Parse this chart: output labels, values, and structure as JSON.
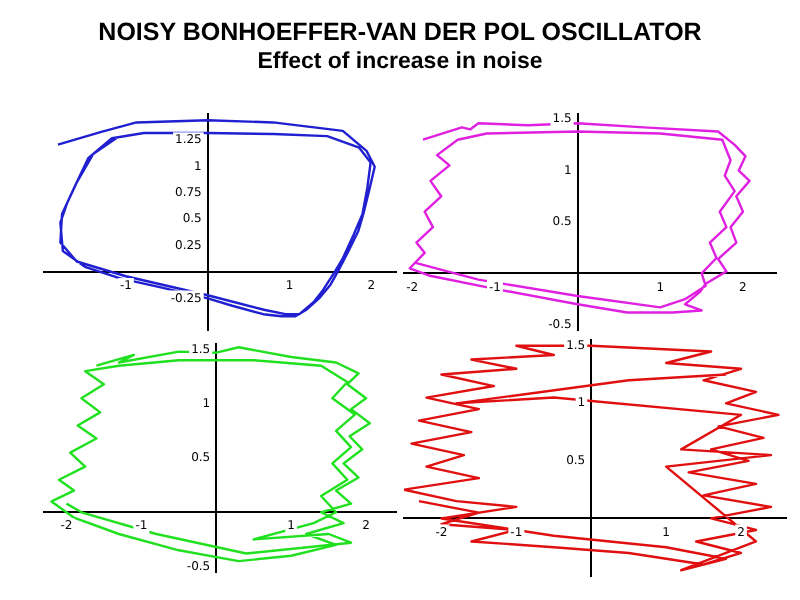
{
  "chart_data": [
    {
      "type": "line",
      "title": "NOISY BONHOEFFER-VAN DER POL OSCILLATOR",
      "subtitle": "Effect of increase in noise",
      "xlim": [
        -2,
        2.3
      ],
      "ylim": [
        -0.55,
        1.5
      ],
      "xticks": [
        -1,
        1,
        2
      ],
      "yticks": [
        -0.25,
        0.25,
        0.5,
        0.75,
        1,
        1.25
      ],
      "grid": false,
      "series": [
        {
          "color": "#2020d0",
          "x": [
            -1.83,
            -1.3,
            -0.87,
            0,
            0.8,
            1.65,
            1.94,
            2.04,
            1.98,
            1.9,
            1.84,
            1.72,
            1.6,
            1.5,
            1.36,
            1.2,
            1.07,
            0.9,
            0.68,
            0.3,
            0,
            -0.6,
            -1.07,
            -1.5,
            -1.77,
            -1.8,
            -1.72,
            -1.65,
            -1.46,
            -1.17,
            -0.78,
            0,
            0.8,
            1.46,
            1.85,
            1.99,
            1.95,
            1.89,
            1.78,
            1.65,
            1.55,
            1.41,
            1.3,
            1.12,
            0.95,
            0.7,
            0,
            -1,
            -1.6,
            -1.8,
            -1.78,
            -1.6,
            -1.4,
            -1.1
          ],
          "values": [
            1.21,
            1.33,
            1.42,
            1.44,
            1.42,
            1.34,
            1.15,
            1,
            0.8,
            0.55,
            0.39,
            0.2,
            0.02,
            -0.12,
            -0.25,
            -0.36,
            -0.42,
            -0.42,
            -0.4,
            -0.32,
            -0.25,
            -0.14,
            -0.06,
            0.05,
            0.2,
            0.47,
            0.65,
            0.77,
            1.08,
            1.27,
            1.32,
            1.32,
            1.31,
            1.29,
            1.18,
            1.04,
            0.8,
            0.55,
            0.35,
            0.13,
            0,
            -0.17,
            -0.28,
            -0.4,
            -0.4,
            -0.36,
            -0.22,
            -0.04,
            0.1,
            0.28,
            0.55,
            0.85,
            1.12,
            1.28
          ]
        }
      ]
    },
    {
      "type": "line",
      "xlim": [
        -2.1,
        2.4
      ],
      "ylim": [
        -0.55,
        1.55
      ],
      "xticks": [
        -2,
        -1,
        1,
        2
      ],
      "yticks": [
        -0.5,
        0.5,
        1,
        1.5
      ],
      "grid": false,
      "series": [
        {
          "color": "#e020e0",
          "x": [
            -1.87,
            -1.4,
            -1.3,
            -1.2,
            -0.6,
            0,
            0.8,
            1.7,
            1.9,
            2.03,
            1.95,
            2.08,
            1.92,
            2,
            1.85,
            1.92,
            1.7,
            1.8,
            1.55,
            1.48,
            1.3,
            1.5,
            1.15,
            0.6,
            0,
            -1,
            -1.8,
            -2.03,
            -1.85,
            -1.95,
            -1.75,
            -1.85,
            -1.65,
            -1.78,
            -1.55,
            -1.7,
            -1.45,
            -1.1,
            0,
            1,
            1.75,
            1.85,
            1.78,
            1.9,
            1.72,
            1.8,
            1.6,
            1.68,
            1.5,
            1.55,
            1.3,
            1,
            0,
            -1.2,
            -1.95
          ],
          "values": [
            1.3,
            1.42,
            1.4,
            1.46,
            1.44,
            1.46,
            1.42,
            1.38,
            1.25,
            1.14,
            1,
            0.9,
            0.75,
            0.6,
            0.45,
            0.3,
            0.14,
            0.02,
            -0.1,
            -0.18,
            -0.3,
            -0.36,
            -0.38,
            -0.38,
            -0.3,
            -0.15,
            -0.02,
            0.05,
            0.2,
            0.3,
            0.45,
            0.6,
            0.75,
            0.9,
            1.05,
            1.15,
            1.3,
            1.36,
            1.38,
            1.36,
            1.3,
            1.1,
            0.95,
            0.8,
            0.6,
            0.45,
            0.3,
            0.15,
            0,
            -0.12,
            -0.25,
            -0.33,
            -0.22,
            -0.06,
            0.1
          ]
        }
      ]
    },
    {
      "type": "line",
      "xlim": [
        -2.3,
        2.4
      ],
      "ylim": [
        -0.55,
        1.55
      ],
      "xticks": [
        -2,
        -1,
        1,
        2
      ],
      "yticks": [
        -0.5,
        0.5,
        1,
        1.5
      ],
      "grid": false,
      "series": [
        {
          "color": "#20e020",
          "x": [
            -1.6,
            -1.1,
            -1.3,
            -0.5,
            0,
            0.3,
            1,
            1.6,
            1.9,
            1.75,
            2,
            1.8,
            2.05,
            1.78,
            1.95,
            1.7,
            1.9,
            1.6,
            1.8,
            1.4,
            1.7,
            1.2,
            1.6,
            1,
            0.3,
            -0.5,
            -1.3,
            -1.9,
            -2.2,
            -1.9,
            -2.1,
            -1.75,
            -1.95,
            -1.6,
            -1.85,
            -1.55,
            -1.8,
            -1.5,
            -1.75,
            -1.3,
            -0.5,
            0.5,
            1.4,
            1.75,
            1.55,
            1.85,
            1.6,
            1.8,
            1.55,
            1.75,
            1.4,
            1.6,
            1.3,
            0.5,
            1.5,
            1.8,
            0.4,
            -0.8,
            -1.8,
            -2
          ],
          "values": [
            1.35,
            1.45,
            1.38,
            1.48,
            1.47,
            1.52,
            1.43,
            1.38,
            1.28,
            1.18,
            1.05,
            0.95,
            0.82,
            0.7,
            0.58,
            0.45,
            0.32,
            0.2,
            0.08,
            0,
            -0.1,
            -0.2,
            -0.3,
            -0.4,
            -0.45,
            -0.35,
            -0.2,
            -0.05,
            0.1,
            0.2,
            0.3,
            0.42,
            0.55,
            0.68,
            0.8,
            0.92,
            1.05,
            1.18,
            1.3,
            1.35,
            1.4,
            1.4,
            1.35,
            1.2,
            1.05,
            0.9,
            0.75,
            0.6,
            0.45,
            0.3,
            0.15,
            0,
            -0.1,
            -0.25,
            -0.2,
            -0.28,
            -0.38,
            -0.2,
            0,
            0.08
          ]
        }
      ]
    },
    {
      "type": "line",
      "xlim": [
        -2.5,
        2.6
      ],
      "ylim": [
        -0.5,
        1.55
      ],
      "xticks": [
        -2,
        -1,
        1,
        2
      ],
      "yticks": [
        0.5,
        1,
        1.5
      ],
      "grid": false,
      "series": [
        {
          "color": "#e01010",
          "x": [
            -2.3,
            -1.5,
            -2,
            -1,
            -1.6,
            -0.5,
            0.5,
            1.5,
            2,
            1.4,
            2.2,
            1.6,
            2.4,
            1.5,
            2.2,
            1.3,
            2.1,
            1.6,
            2.3,
            1.7,
            2.5,
            1.8,
            2.2,
            1.5,
            2,
            1,
            1.6,
            0,
            -1,
            -0.5,
            -1.6,
            -1,
            -2,
            -1.3,
            -2.2,
            -1.5,
            -2.3,
            -1.6,
            -2.4,
            -1.7,
            -2.2,
            -1.5,
            -2.5,
            -1.8,
            -1,
            -2,
            -0.5,
            1,
            1.8,
            1.2,
            2.2,
            1,
            2.4,
            1.2,
            2,
            -0.5,
            -1.8,
            0.5,
            1.8
          ],
          "values": [
            0.15,
            0.05,
            -0.05,
            -0.1,
            -0.2,
            -0.25,
            -0.3,
            -0.4,
            -0.3,
            -0.2,
            -0.1,
            0,
            0.1,
            0.2,
            0.3,
            0.4,
            0.5,
            0.6,
            0.7,
            0.8,
            0.9,
            1,
            1.1,
            1.2,
            1.3,
            1.35,
            1.45,
            1.5,
            1.5,
            1.42,
            1.38,
            1.3,
            1.25,
            1.15,
            1.05,
            0.95,
            0.85,
            0.75,
            0.65,
            0.55,
            0.45,
            0.35,
            0.25,
            0.15,
            0.1,
            0,
            -0.15,
            -0.25,
            -0.35,
            -0.45,
            -0.2,
            0.45,
            0.55,
            0.6,
            0.9,
            1.05,
            1,
            1.2,
            1.25
          ]
        }
      ]
    }
  ]
}
